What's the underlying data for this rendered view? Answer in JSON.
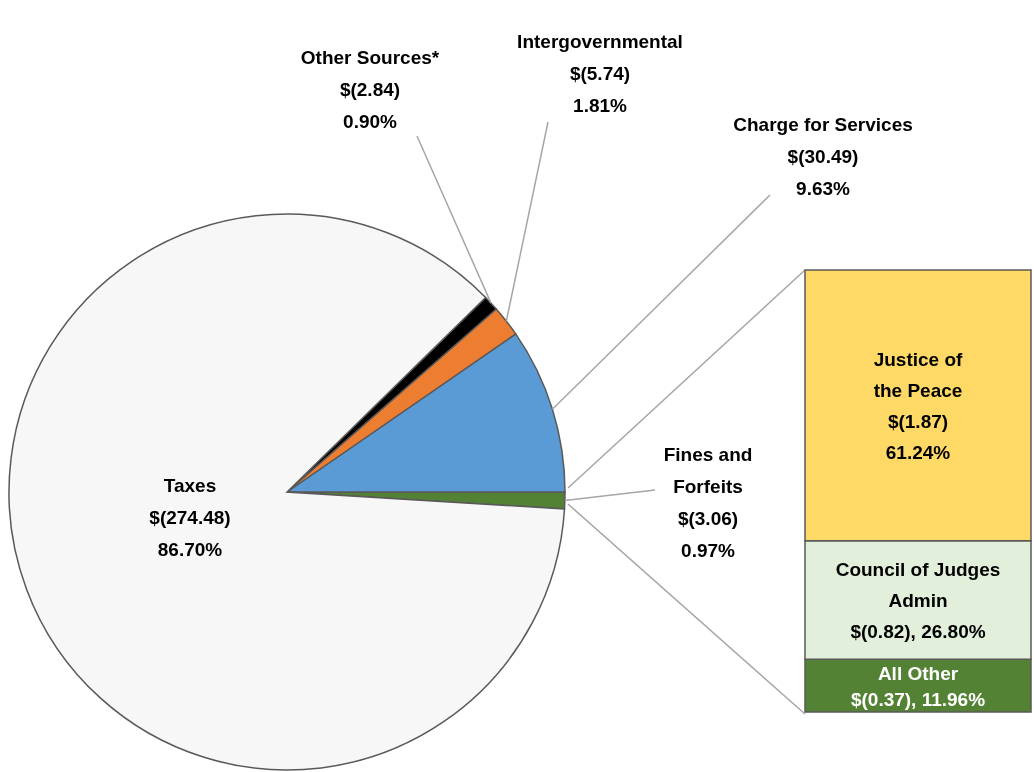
{
  "chart_data": [
    {
      "type": "pie",
      "categories": [
        "Fines and Forfeits",
        "Charge for Services",
        "Intergovernmental",
        "Other Sources*",
        "Taxes"
      ],
      "values": [
        3.06,
        30.49,
        5.74,
        2.84,
        274.48
      ],
      "colors": [
        "#548235",
        "#5b9bd5",
        "#ed7d31",
        "#000000",
        "#f7f7f7"
      ],
      "value_labels": [
        "$(3.06)\n0.97%",
        "$(30.49)\n9.63%",
        "$(5.74)\n1.81%",
        "$(2.84)\n0.90%",
        "$(274.48)\n86.70%"
      ]
    },
    {
      "type": "bar",
      "stacked": true,
      "categories": [
        null
      ],
      "series": [
        {
          "name": "All Other",
          "color": "#548235",
          "values": [
            11.96
          ],
          "value_labels": [
            "$(0.37), 11.96%"
          ]
        },
        {
          "name": "Council of Judges Admin",
          "color": "#e2efda",
          "values": [
            26.8
          ],
          "value_labels": [
            "$(0.82), 26.80%"
          ]
        },
        {
          "name": "Justice of the Peace",
          "color": "#ffd966",
          "values": [
            61.24
          ],
          "value_labels": [
            "$(1.87)\n61.24%"
          ]
        }
      ]
    }
  ]
}
